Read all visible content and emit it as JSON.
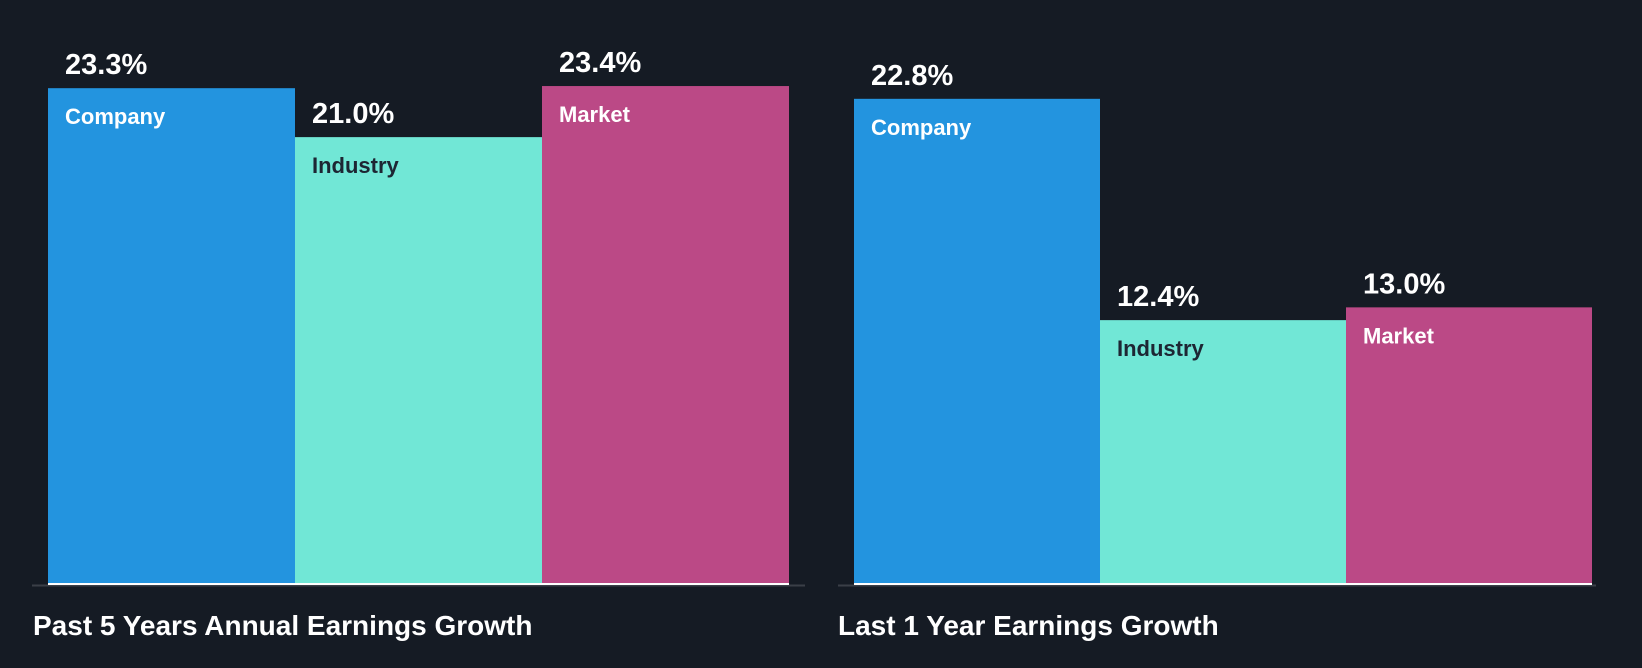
{
  "colors": {
    "background": "#151b24",
    "Company": "#2394df",
    "Industry": "#71e7d6",
    "Market": "#bb4986",
    "axis": "#3a3f47"
  },
  "chart_data": [
    {
      "type": "bar",
      "title": "Past 5 Years Annual Earnings Growth",
      "categories": [
        "Company",
        "Industry",
        "Market"
      ],
      "values": [
        23.3,
        21.0,
        23.4
      ],
      "labels": [
        "23.3%",
        "21.0%",
        "23.4%"
      ],
      "ylim": [
        0,
        25
      ],
      "grid": false
    },
    {
      "type": "bar",
      "title": "Last 1 Year Earnings Growth",
      "categories": [
        "Company",
        "Industry",
        "Market"
      ],
      "values": [
        22.8,
        12.4,
        13.0
      ],
      "labels": [
        "22.8%",
        "12.4%",
        "13.0%"
      ],
      "ylim": [
        0,
        25
      ],
      "grid": false
    }
  ]
}
